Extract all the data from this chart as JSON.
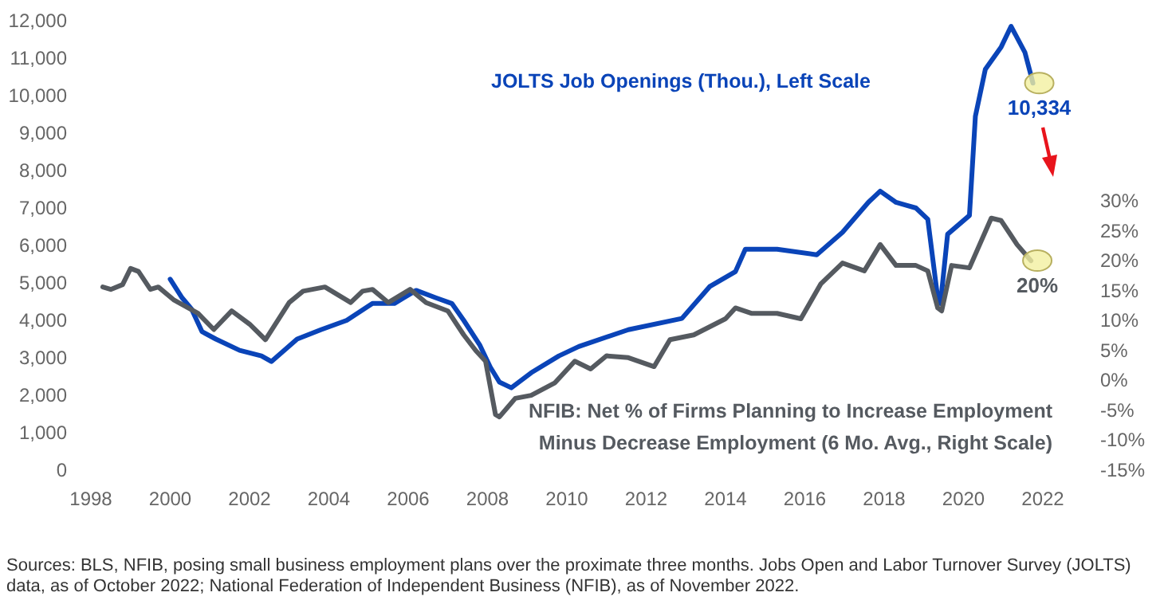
{
  "chart_data": {
    "type": "line",
    "xlim": [
      1998,
      2022
    ],
    "xticks": [
      1998,
      2000,
      2002,
      2004,
      2006,
      2008,
      2010,
      2012,
      2014,
      2016,
      2018,
      2020,
      2022
    ],
    "ylim": [
      0,
      12000
    ],
    "yticks": [
      {
        "value": 0,
        "label": "0"
      },
      {
        "value": 1000,
        "label": "1,000"
      },
      {
        "value": 2000,
        "label": "2,000"
      },
      {
        "value": 3000,
        "label": "3,000"
      },
      {
        "value": 4000,
        "label": "4,000"
      },
      {
        "value": 5000,
        "label": "5,000"
      },
      {
        "value": 6000,
        "label": "6,000"
      },
      {
        "value": 7000,
        "label": "7,000"
      },
      {
        "value": 8000,
        "label": "8,000"
      },
      {
        "value": 9000,
        "label": "9,000"
      },
      {
        "value": 10000,
        "label": "10,000"
      },
      {
        "value": 11000,
        "label": "11,000"
      },
      {
        "value": 12000,
        "label": "12,000"
      }
    ],
    "y2lim": [
      -15,
      30
    ],
    "y2ticks": [
      {
        "value": -15,
        "label": "-15%"
      },
      {
        "value": -10,
        "label": "-10%"
      },
      {
        "value": -5,
        "label": "-5%"
      },
      {
        "value": 0,
        "label": "0%"
      },
      {
        "value": 5,
        "label": "5%"
      },
      {
        "value": 10,
        "label": "10%"
      },
      {
        "value": 15,
        "label": "15%"
      },
      {
        "value": 20,
        "label": "20%"
      },
      {
        "value": 25,
        "label": "25%"
      },
      {
        "value": 30,
        "label": "30%"
      }
    ],
    "grid": false,
    "marker": "none",
    "line_style": "solid",
    "series": [
      {
        "name": "JOLTS Job Openings (Thou.), Left Scale",
        "color": "#0a44b8",
        "x": [
          2000.0,
          2000.3,
          2000.54,
          2000.8,
          2001.15,
          2001.75,
          2002.3,
          2002.55,
          2003.2,
          2003.8,
          2004.45,
          2005.1,
          2005.65,
          2006.2,
          2006.7,
          2007.1,
          2007.4,
          2007.8,
          2008.07,
          2008.3,
          2008.6,
          2009.1,
          2009.8,
          2010.3,
          2011.55,
          2012.9,
          2013.6,
          2014.25,
          2014.5,
          2015.3,
          2016.3,
          2016.95,
          2017.6,
          2017.9,
          2018.3,
          2018.8,
          2019.1,
          2019.35,
          2019.42,
          2019.6,
          2020.15,
          2020.3,
          2020.55,
          2020.95,
          2021.2,
          2021.55,
          2021.7,
          2021.75
        ],
        "values": [
          5100,
          4600,
          4300,
          3700,
          3500,
          3200,
          3050,
          2900,
          3500,
          3750,
          4000,
          4450,
          4450,
          4800,
          4600,
          4450,
          4000,
          3350,
          2750,
          2350,
          2200,
          2600,
          3050,
          3300,
          3750,
          4050,
          4900,
          5300,
          5900,
          5900,
          5750,
          6350,
          7150,
          7450,
          7150,
          7000,
          6700,
          4600,
          4450,
          6300,
          6800,
          9450,
          10700,
          11300,
          11850,
          11150,
          10550,
          10334
        ],
        "value_labels": [
          null,
          null,
          null,
          null,
          null,
          null,
          null,
          null,
          null,
          null,
          null,
          null,
          null,
          null,
          null,
          null,
          null,
          null,
          null,
          null,
          null,
          null,
          null,
          null,
          null,
          null,
          null,
          null,
          null,
          null,
          null,
          null,
          null,
          null,
          null,
          null,
          null,
          null,
          null,
          null,
          null,
          null,
          null,
          null,
          null,
          null,
          null,
          "10,334"
        ]
      },
      {
        "name": "NFIB:  Net % of Firms Planning to Increase Employment Minus Decrease Employment (6 Mo. Avg., Right Scale)",
        "color": "#555a60",
        "axis": "y2",
        "x": [
          1998.3,
          1998.5,
          1998.8,
          1999.0,
          1999.2,
          1999.5,
          1999.7,
          2000.1,
          2000.7,
          2001.1,
          2001.55,
          2002.0,
          2002.4,
          2003.0,
          2003.35,
          2003.9,
          2004.55,
          2004.85,
          2005.1,
          2005.5,
          2006.05,
          2006.45,
          2007.0,
          2007.4,
          2007.7,
          2007.95,
          2008.2,
          2008.3,
          2008.7,
          2009.1,
          2009.7,
          2010.2,
          2010.6,
          2011.0,
          2011.55,
          2012.2,
          2012.6,
          2013.2,
          2014.0,
          2014.25,
          2014.65,
          2015.3,
          2015.9,
          2016.4,
          2016.95,
          2017.5,
          2017.9,
          2018.3,
          2018.8,
          2019.1,
          2019.35,
          2019.45,
          2019.7,
          2020.15,
          2020.7,
          2020.95,
          2021.35,
          2021.7
        ],
        "values": [
          15.6,
          15.2,
          16.0,
          18.7,
          18.2,
          15.2,
          15.6,
          13.4,
          11.2,
          8.5,
          11.6,
          9.4,
          6.8,
          13.0,
          14.9,
          15.6,
          13.0,
          14.9,
          15.2,
          13.0,
          15.2,
          13.0,
          11.6,
          7.6,
          5.0,
          3.2,
          -5.7,
          -6.1,
          -3.0,
          -2.5,
          -0.4,
          3.2,
          1.9,
          4.1,
          3.8,
          2.3,
          6.8,
          7.6,
          10.3,
          12.1,
          11.2,
          11.2,
          10.3,
          16.1,
          19.6,
          18.3,
          22.7,
          19.2,
          19.2,
          18.3,
          12.1,
          11.6,
          19.2,
          18.8,
          27.1,
          26.7,
          22.7,
          20
        ],
        "value_labels": [
          null,
          null,
          null,
          null,
          null,
          null,
          null,
          null,
          null,
          null,
          null,
          null,
          null,
          null,
          null,
          null,
          null,
          null,
          null,
          null,
          null,
          null,
          null,
          null,
          null,
          null,
          null,
          null,
          null,
          null,
          null,
          null,
          null,
          null,
          null,
          null,
          null,
          null,
          null,
          null,
          null,
          null,
          null,
          null,
          null,
          null,
          null,
          null,
          null,
          null,
          null,
          null,
          null,
          null,
          null,
          null,
          null,
          "20%"
        ]
      }
    ],
    "annotations": [
      "Sources: BLS, NFIB, posing small business employment plans over the proximate three months. Jobs Open and Labor Turnover Survey (JOLTS) data, as of October 2022; National Federation of Independent Business (NFIB), as of November 2022."
    ]
  }
}
